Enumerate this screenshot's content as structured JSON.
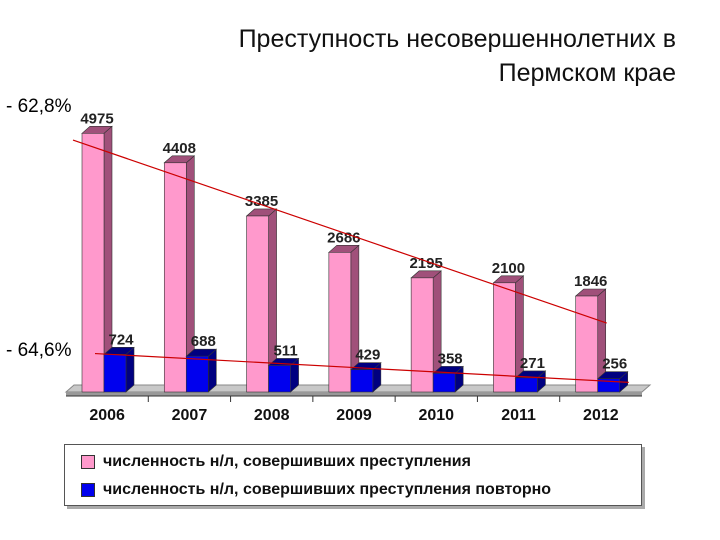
{
  "title_line1": "Преступность несовершеннолетних в",
  "title_line2": "Пермском крае",
  "change_labels": {
    "top": "- 62,8%",
    "bottom": "- 64,6%"
  },
  "colors": {
    "series1": "#ff99cc",
    "series1_side": "#a0507a",
    "series2": "#0000ee",
    "series2_side": "#000080",
    "trend": "#cc0000"
  },
  "chart_data": {
    "type": "bar",
    "categories": [
      "2006",
      "2007",
      "2008",
      "2009",
      "2010",
      "2011",
      "2012"
    ],
    "series": [
      {
        "name": "численность н/л, совершивших преступления",
        "values": [
          4975,
          4408,
          3385,
          2686,
          2195,
          2100,
          1846
        ]
      },
      {
        "name": "численность н/л, совершивших преступления повторно",
        "values": [
          724,
          688,
          511,
          429,
          358,
          271,
          256
        ]
      }
    ],
    "ylim": [
      0,
      5000
    ],
    "grid": false,
    "legend_position": "bottom",
    "trendlines": true
  }
}
